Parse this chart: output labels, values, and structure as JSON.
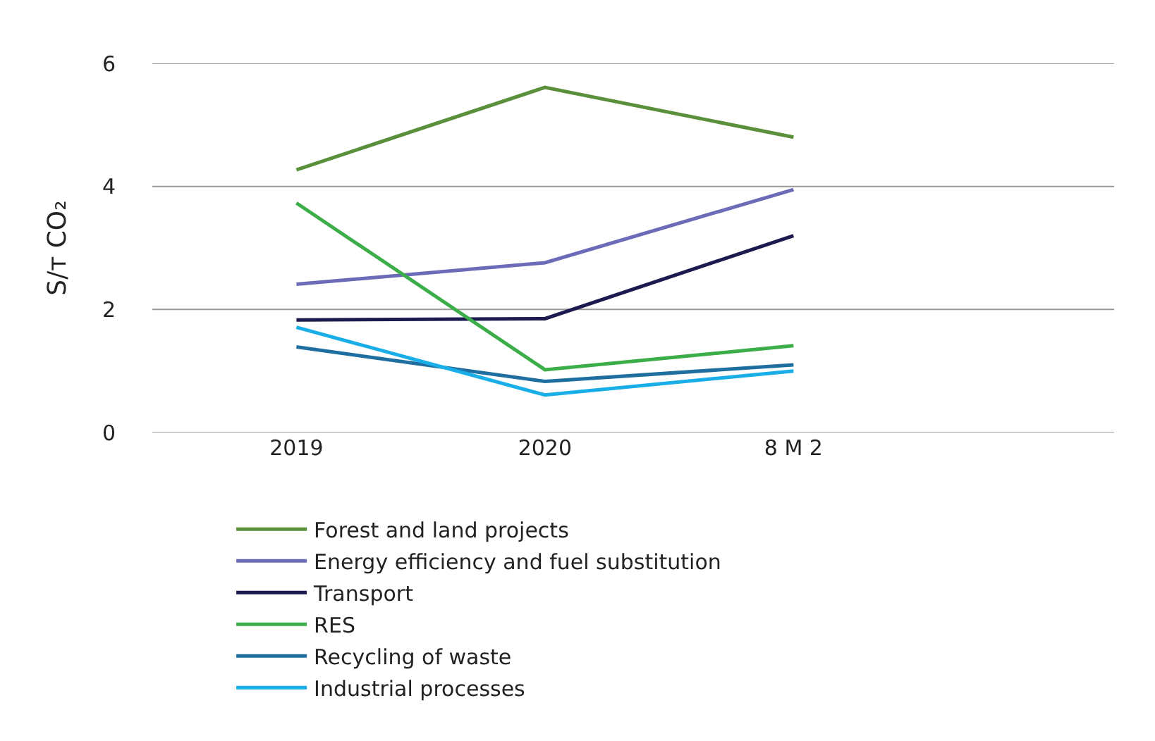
{
  "chart_data": {
    "type": "line",
    "ylabel": "S/т CO₂",
    "categories": [
      "2019",
      "2020",
      "8 M 2"
    ],
    "series": [
      {
        "name": "Forest and land projects",
        "color": "#5a8f3c",
        "values": [
          4.27,
          5.61,
          4.8
        ]
      },
      {
        "name": "Energy efficiency and fuel substitution",
        "color": "#6b6bb8",
        "values": [
          2.41,
          2.76,
          3.95
        ]
      },
      {
        "name": "Transport",
        "color": "#1c1a4f",
        "values": [
          1.83,
          1.85,
          3.2
        ]
      },
      {
        "name": "RES",
        "color": "#3cae49",
        "values": [
          3.73,
          1.02,
          1.41
        ]
      },
      {
        "name": "Recycling of waste",
        "color": "#1f6ea0",
        "values": [
          1.39,
          0.83,
          1.1
        ]
      },
      {
        "name": "Industrial processes",
        "color": "#1aaee8",
        "values": [
          1.71,
          0.61,
          1.0
        ]
      }
    ],
    "ylim": [
      0,
      6
    ],
    "yticks": [
      0,
      2,
      4,
      6
    ],
    "grid": "y",
    "legend": "bottom",
    "marker": "none",
    "line_style": "solid"
  }
}
